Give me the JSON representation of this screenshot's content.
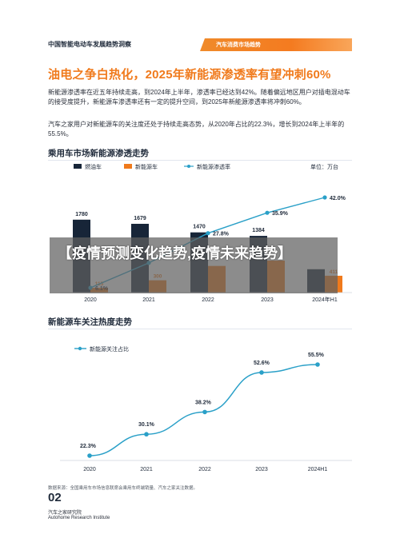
{
  "header": {
    "title": "中国智能电动车发展趋势洞察",
    "tag": "汽车消费市场趋势"
  },
  "main_title": "油电之争白热化，2025年新能源渗透率有望冲刺60%",
  "paragraphs": [
    "新能源渗透率在近五年持续走高，到2024年上半年，渗透率已经达到42%。随着偏远地区用户对插电混动车的接受度提升，新能源车渗透率还有一定的提升空间，到2025年新能源渗透率将冲刺60%。",
    "汽车之家用户对新能源车的关注度还处于持续走高态势，从2020年占比的22.3%，增长到2024年上半年的55.5%。"
  ],
  "section1": {
    "title": "乘用车市场新能源渗透走势"
  },
  "section2": {
    "title": "新能源车关注热度走势"
  },
  "overlay": {
    "text": "【疫情预测变化趋势,疫情未来趋势】"
  },
  "footnote": "数据来源：全国乘用车市场信息联席会乘用车终端销量、汽车之家关注数据。",
  "page_number": "02",
  "org": {
    "cn": "汽车之家研究院",
    "en": "Autohome Research Institute"
  },
  "colors": {
    "dark": "#172538",
    "orange": "#f07a1c",
    "teal": "#2aa0c8"
  },
  "chart_data": [
    {
      "type": "bar",
      "unit_label": "单位：万台",
      "categories": [
        "2020",
        "2021",
        "2022",
        "2023",
        "2024年H1"
      ],
      "bar_labels": {
        "fuel": [
          "1780",
          "1679",
          "1470",
          "1384",
          ""
        ],
        "nev": [
          "115",
          "300",
          "",
          "",
          "411"
        ]
      },
      "series": [
        {
          "name": "燃油车",
          "values": [
            1780,
            1679,
            1470,
            1384,
            570
          ],
          "color": "#172538"
        },
        {
          "name": "新能源车",
          "values": [
            115,
            300,
            650,
            780,
            411
          ],
          "color": "#f07a1c"
        }
      ],
      "line": {
        "name": "新能源渗透率",
        "values": [
          6.1,
          16.0,
          27.8,
          35.9,
          42.0
        ],
        "labels": [
          "6.1%",
          "",
          "27.8%",
          "35.9%",
          "42.0%"
        ],
        "color": "#2aa0c8"
      },
      "ylim": [
        0,
        2000
      ],
      "line_ylim": [
        0,
        45
      ]
    },
    {
      "type": "line",
      "x": [
        "2020",
        "2021",
        "2022",
        "2023",
        "2024H1"
      ],
      "series": [
        {
          "name": "新能源关注占比",
          "values": [
            22.3,
            30.1,
            38.2,
            52.6,
            55.5
          ],
          "labels": [
            "22.3%",
            "30.1%",
            "38.2%",
            "52.6%",
            "55.5%"
          ],
          "color": "#2aa0c8"
        }
      ],
      "ylim": [
        15,
        60
      ]
    }
  ]
}
